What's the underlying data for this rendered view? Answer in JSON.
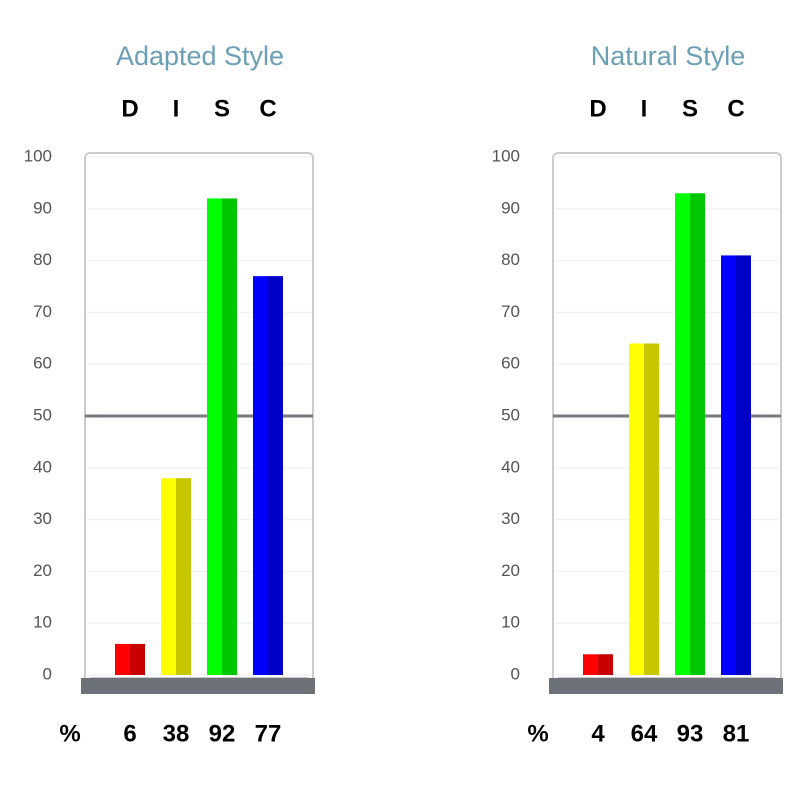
{
  "chart_data": [
    {
      "type": "bar",
      "title": "Adapted Style",
      "categories": [
        "D",
        "I",
        "S",
        "C"
      ],
      "values": [
        6,
        38,
        92,
        77
      ],
      "colors": [
        "#ff0000",
        "#ffff00",
        "#00ff00",
        "#0000ff"
      ],
      "ylim": [
        0,
        100
      ],
      "yticks": [
        0,
        10,
        20,
        30,
        40,
        50,
        60,
        70,
        80,
        90,
        100
      ],
      "grid": true,
      "reference_line": 50,
      "value_label_prefix": "%"
    },
    {
      "type": "bar",
      "title": "Natural Style",
      "categories": [
        "D",
        "I",
        "S",
        "C"
      ],
      "values": [
        4,
        64,
        93,
        81
      ],
      "colors": [
        "#ff0000",
        "#ffff00",
        "#00ff00",
        "#0000ff"
      ],
      "ylim": [
        0,
        100
      ],
      "yticks": [
        0,
        10,
        20,
        30,
        40,
        50,
        60,
        70,
        80,
        90,
        100
      ],
      "grid": true,
      "reference_line": 50,
      "value_label_prefix": "%"
    }
  ]
}
